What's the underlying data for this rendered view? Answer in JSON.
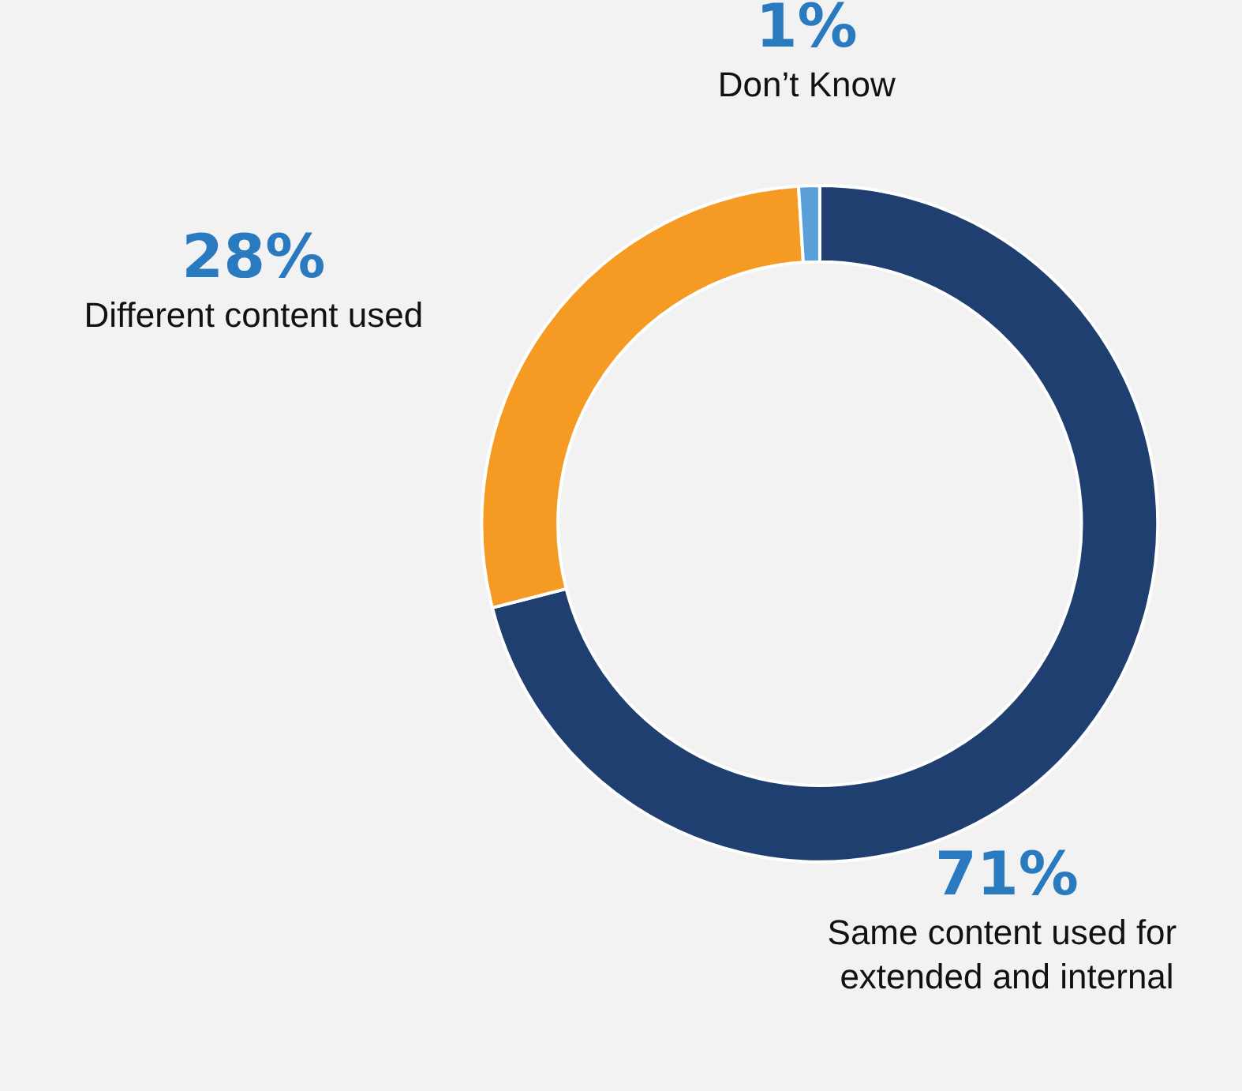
{
  "chart_data": {
    "type": "donut",
    "categories": [
      "Same content used for extended and internal",
      "Different content used",
      "Don’t Know"
    ],
    "values": [
      71,
      28,
      1
    ],
    "colors": [
      "#1e3f70",
      "#f59a23",
      "#5a9fd8"
    ],
    "value_labels": [
      "71%",
      "28%",
      "1%"
    ],
    "legend": false
  }
}
